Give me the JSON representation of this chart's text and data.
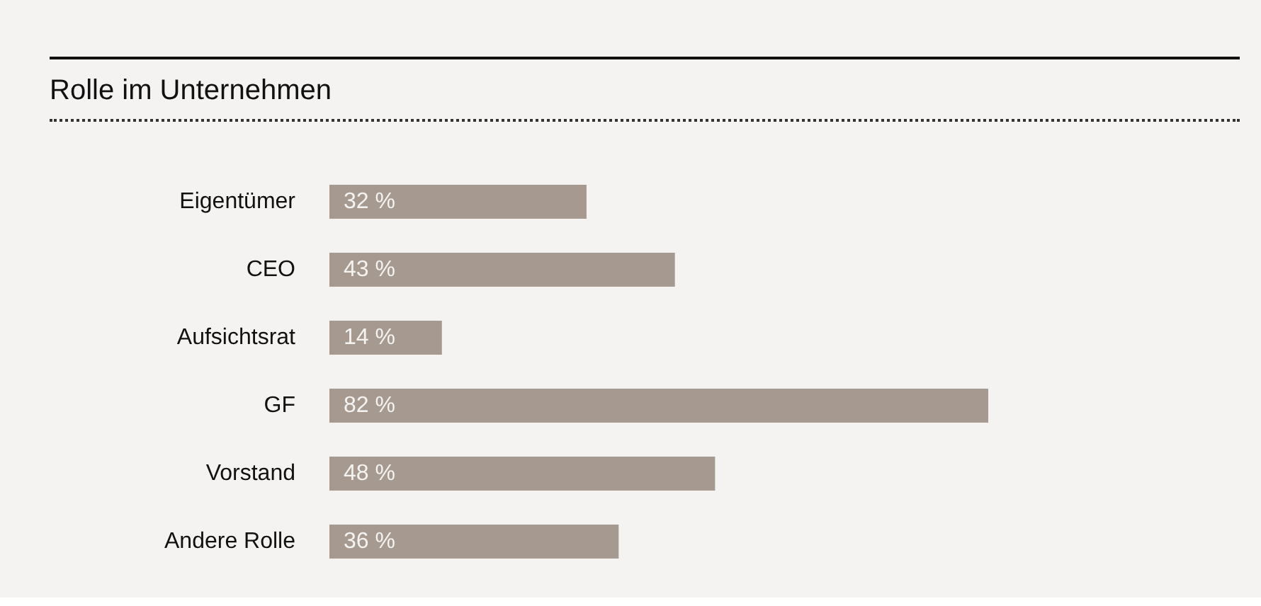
{
  "chart_data": {
    "type": "bar",
    "orientation": "horizontal",
    "title": "Rolle im Unternehmen",
    "categories": [
      "Eigentümer",
      "CEO",
      "Aufsichtsrat",
      "GF",
      "Vorstand",
      "Andere Rolle"
    ],
    "values": [
      32,
      43,
      14,
      82,
      48,
      36
    ],
    "value_labels": [
      "32 %",
      "43 %",
      "14 %",
      "82 %",
      "48 %",
      "36 %"
    ],
    "color": "#a69a90",
    "grid": false
  }
}
